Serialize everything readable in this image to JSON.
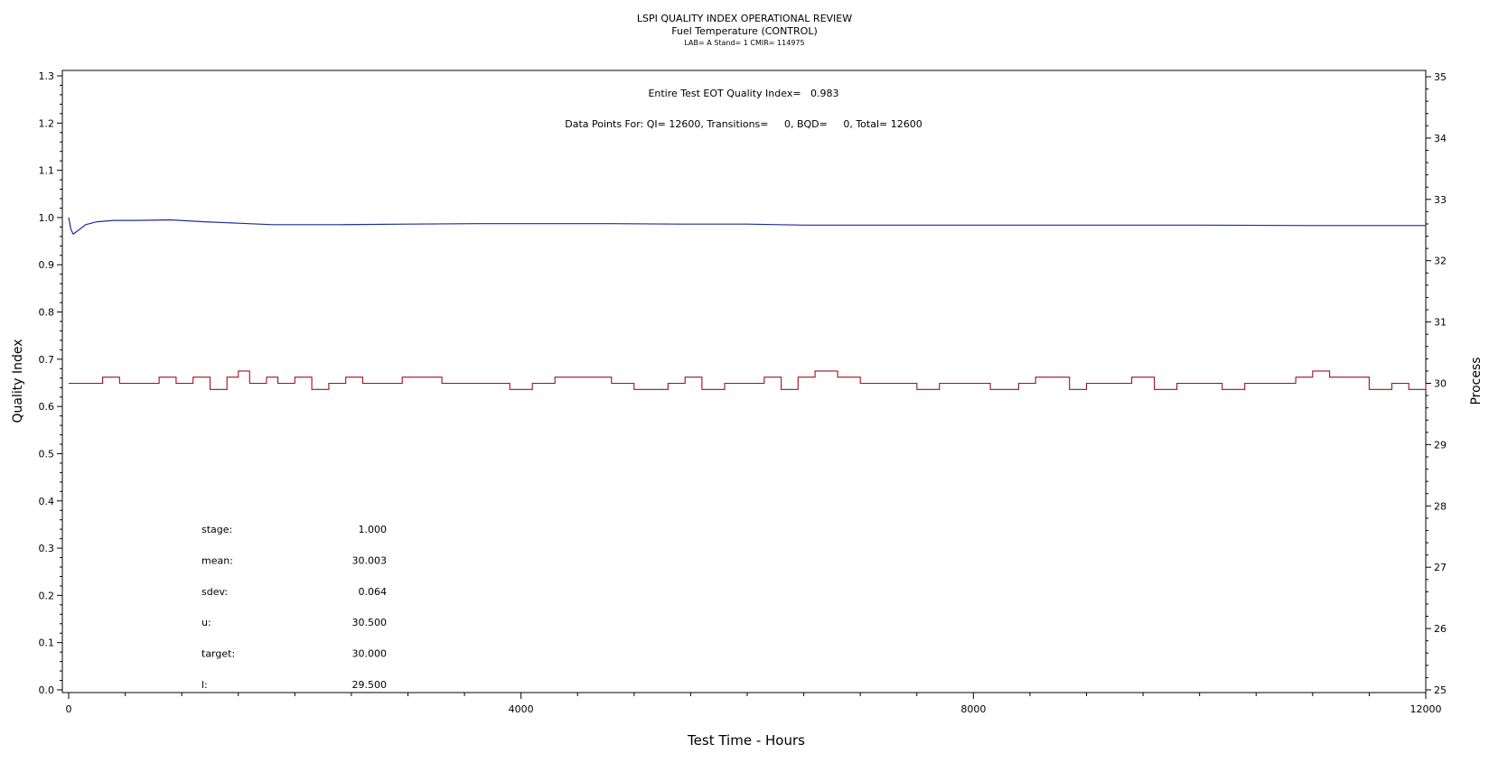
{
  "header": {
    "title": "LSPI QUALITY INDEX OPERATIONAL REVIEW",
    "subtitle": "Fuel Temperature (CONTROL)",
    "info": "LAB= A Stand= 1 CMIR= 114975"
  },
  "annotations": {
    "qi_summary": "Entire Test EOT Quality Index=   0.983",
    "data_points": "Data Points For: QI= 12600, Transitions=     0, BQD=     0, Total= 12600"
  },
  "stats": [
    {
      "label": "stage:",
      "value": "1.000"
    },
    {
      "label": "mean:",
      "value": "30.003"
    },
    {
      "label": "sdev:",
      "value": "0.064"
    },
    {
      "label": "u:",
      "value": "30.500"
    },
    {
      "label": "target:",
      "value": "30.000"
    },
    {
      "label": "l:",
      "value": "29.500"
    }
  ],
  "colors": {
    "quality_index": "#1f2a9c",
    "process": "#a01020"
  },
  "chart_data": {
    "type": "line",
    "xlabel": "Test Time - Hours",
    "ylabel_left": "Quality Index",
    "ylabel_right": "Process",
    "xlim": [
      0,
      12000
    ],
    "ylim_left": [
      0,
      1.3
    ],
    "ylim_right": [
      25,
      35
    ],
    "x_ticks": [
      0,
      4000,
      8000,
      12000
    ],
    "y_ticks_left": [
      "0.0",
      "0.1",
      "0.2",
      "0.3",
      "0.4",
      "0.5",
      "0.6",
      "0.7",
      "0.8",
      "0.9",
      "1.0",
      "1.1",
      "1.2",
      "1.3"
    ],
    "y_ticks_right": [
      "25",
      "26",
      "27",
      "28",
      "29",
      "30",
      "31",
      "32",
      "33",
      "34",
      "35"
    ],
    "series": [
      {
        "axis": "left",
        "x": [
          0,
          20,
          40,
          80,
          150,
          250,
          400,
          600,
          900,
          1200,
          1500,
          1800,
          2400,
          3000,
          3600,
          4200,
          4800,
          5400,
          6000,
          6500,
          7000,
          8000,
          9000,
          10000,
          11000,
          11500,
          12000
        ],
        "y": [
          1.0,
          0.975,
          0.965,
          0.972,
          0.985,
          0.991,
          0.994,
          0.994,
          0.995,
          0.991,
          0.988,
          0.985,
          0.985,
          0.986,
          0.987,
          0.987,
          0.987,
          0.986,
          0.986,
          0.984,
          0.984,
          0.984,
          0.984,
          0.984,
          0.983,
          0.983,
          0.983
        ]
      },
      {
        "axis": "right",
        "x": [
          0,
          300,
          450,
          600,
          800,
          950,
          1100,
          1250,
          1400,
          1500,
          1600,
          1750,
          1850,
          2000,
          2150,
          2300,
          2450,
          2600,
          2800,
          2950,
          3100,
          3300,
          3500,
          3700,
          3900,
          4100,
          4300,
          4550,
          4800,
          5000,
          5150,
          5300,
          5450,
          5600,
          5800,
          6000,
          6150,
          6300,
          6450,
          6600,
          6800,
          7000,
          7300,
          7500,
          7700,
          7900,
          8150,
          8400,
          8550,
          8700,
          8850,
          9000,
          9200,
          9400,
          9600,
          9800,
          10000,
          10200,
          10400,
          10600,
          10850,
          11000,
          11150,
          11350,
          11500,
          11700,
          11850,
          12000
        ],
        "y": [
          30.0,
          30.1,
          30.0,
          30.0,
          30.1,
          30.0,
          30.1,
          29.9,
          30.1,
          30.2,
          30.0,
          30.1,
          30.0,
          30.1,
          29.9,
          30.0,
          30.1,
          30.0,
          30.0,
          30.1,
          30.1,
          30.0,
          30.0,
          30.0,
          29.9,
          30.0,
          30.1,
          30.1,
          30.0,
          29.9,
          29.9,
          30.0,
          30.1,
          29.9,
          30.0,
          30.0,
          30.1,
          29.9,
          30.1,
          30.2,
          30.1,
          30.0,
          30.0,
          29.9,
          30.0,
          30.0,
          29.9,
          30.0,
          30.1,
          30.1,
          29.9,
          30.0,
          30.0,
          30.1,
          29.9,
          30.0,
          30.0,
          29.9,
          30.0,
          30.0,
          30.1,
          30.2,
          30.1,
          30.1,
          29.9,
          30.0,
          29.9,
          30.0
        ]
      }
    ]
  }
}
